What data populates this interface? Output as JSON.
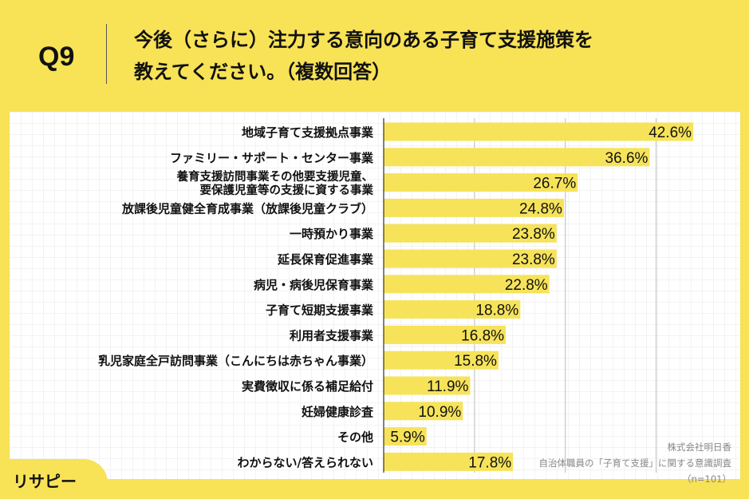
{
  "header": {
    "question": "Q9",
    "title_line1": "今後（さらに）注力する意向のある子育て支援施策を",
    "title_line2": "教えてください。（複数回答）"
  },
  "source": {
    "company": "株式会社明日香",
    "survey": "自治体職員の「子育て支援」に関する意識調査",
    "n": "（n=101）"
  },
  "logo": {
    "text": "リサピー"
  },
  "colors": {
    "background": "#f8e256",
    "bar": "#f6e35a"
  },
  "chart_data": {
    "type": "bar",
    "orientation": "horizontal",
    "grid": true,
    "categories": [
      "地域子育て支援拠点事業",
      "ファミリー・サポート・センター事業",
      "養育支援訪問事業その他要支援児童、\n要保護児童等の支援に資する事業",
      "放課後児童健全育成事業（放課後児童クラブ）",
      "一時預かり事業",
      "延長保育促進事業",
      "病児・病後児保育事業",
      "子育て短期支援事業",
      "利用者支援事業",
      "乳児家庭全戸訪問事業（こんにちは赤ちゃん事業）",
      "実費徴収に係る補足給付",
      "妊婦健康診査",
      "その他",
      "わからない/答えられない"
    ],
    "values": [
      42.6,
      36.6,
      26.7,
      24.8,
      23.8,
      23.8,
      22.8,
      18.8,
      16.8,
      15.8,
      11.9,
      10.9,
      5.9,
      17.8
    ],
    "data_labels": [
      "42.6%",
      "36.6%",
      "26.7%",
      "24.8%",
      "23.8%",
      "23.8%",
      "22.8%",
      "18.8%",
      "16.8%",
      "15.8%",
      "11.9%",
      "10.9%",
      "5.9%",
      "17.8%"
    ],
    "xlim": [
      0,
      50
    ]
  }
}
